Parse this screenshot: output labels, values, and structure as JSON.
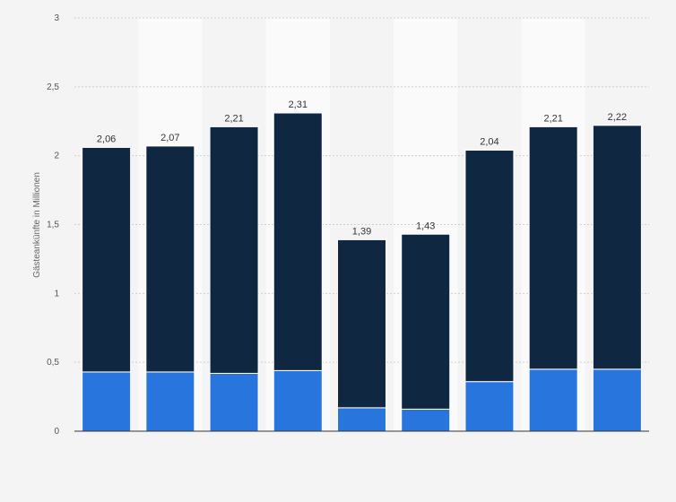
{
  "chart_data": {
    "type": "bar",
    "stacked": true,
    "ylabel": "Gästeankünfte in Millionen",
    "ylim": [
      0,
      3
    ],
    "yticks": [
      0,
      0.5,
      1,
      1.5,
      2,
      2.5,
      3
    ],
    "ytick_labels": [
      "0",
      "0,5",
      "1",
      "1,5",
      "2",
      "2,5",
      "3"
    ],
    "grid": true,
    "totals": [
      2.06,
      2.07,
      2.21,
      2.31,
      1.39,
      1.43,
      2.04,
      2.21,
      2.22
    ],
    "total_labels": [
      "2,06",
      "2,07",
      "2,21",
      "2,31",
      "1,39",
      "1,43",
      "2,04",
      "2,21",
      "2,22"
    ],
    "series": [
      {
        "color": "#2876dd",
        "values": [
          0.43,
          0.43,
          0.42,
          0.44,
          0.17,
          0.16,
          0.36,
          0.45,
          0.45
        ]
      },
      {
        "color": "#0f2740",
        "values": [
          1.63,
          1.64,
          1.79,
          1.87,
          1.22,
          1.27,
          1.68,
          1.76,
          1.77
        ]
      }
    ]
  }
}
